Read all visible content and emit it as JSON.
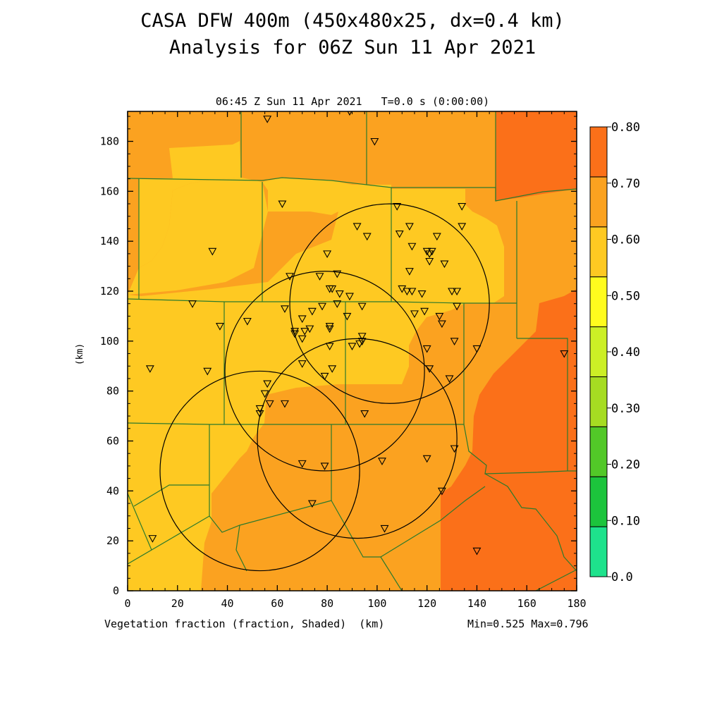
{
  "header": {
    "title_line1": "CASA DFW 400m (450x480x25, dx=0.4 km)",
    "title_line2": "Analysis for 06Z Sun 11 Apr 2021",
    "subtitle": "06:45 Z Sun 11 Apr 2021   T=0.0 s (0:00:00)"
  },
  "footer": {
    "field_label": "Vegetation fraction (fraction, Shaded)  (km)",
    "min_max": "Min=0.525 Max=0.796"
  },
  "axes": {
    "ylabel": "(km)",
    "x_ticks": [
      0,
      20,
      40,
      60,
      80,
      100,
      120,
      140,
      160,
      180
    ],
    "y_ticks": [
      0,
      20,
      40,
      60,
      80,
      100,
      120,
      140,
      160,
      180
    ],
    "xlim": [
      0,
      180
    ],
    "ylim": [
      0,
      192
    ]
  },
  "colorbar": {
    "levels": [
      "0.0",
      "0.10",
      "0.20",
      "0.30",
      "0.40",
      "0.50",
      "0.60",
      "0.70",
      "0.80"
    ],
    "colors": [
      "#1ee28c",
      "#1cc43c",
      "#52c828",
      "#a6dc22",
      "#ccef26",
      "#fffc1e",
      "#fec922",
      "#fba220",
      "#fb7019"
    ]
  },
  "chart_data": {
    "type": "heatmap",
    "field": "Vegetation fraction",
    "min": 0.525,
    "max": 0.796,
    "radar_rings": [
      {
        "cx": 53,
        "cy": 48,
        "r": 40
      },
      {
        "cx": 79,
        "cy": 88,
        "r": 40
      },
      {
        "cx": 92,
        "cy": 61,
        "r": 40
      },
      {
        "cx": 105,
        "cy": 115,
        "r": 40
      }
    ],
    "stations": [
      [
        56,
        189
      ],
      [
        89,
        192
      ],
      [
        99,
        180
      ],
      [
        62,
        155
      ],
      [
        34,
        136
      ],
      [
        108,
        154
      ],
      [
        134,
        154
      ],
      [
        113,
        146
      ],
      [
        109,
        143
      ],
      [
        124,
        142
      ],
      [
        134,
        146
      ],
      [
        92,
        146
      ],
      [
        96,
        142
      ],
      [
        80,
        135
      ],
      [
        114,
        138
      ],
      [
        120,
        136
      ],
      [
        122,
        136
      ],
      [
        121,
        135
      ],
      [
        121,
        132
      ],
      [
        127,
        131
      ],
      [
        65,
        126
      ],
      [
        77,
        126
      ],
      [
        84,
        127
      ],
      [
        113,
        128
      ],
      [
        81,
        121
      ],
      [
        82,
        121
      ],
      [
        110,
        121
      ],
      [
        112,
        120
      ],
      [
        114,
        120
      ],
      [
        118,
        119
      ],
      [
        130,
        120
      ],
      [
        132,
        120
      ],
      [
        85,
        119
      ],
      [
        89,
        118
      ],
      [
        78,
        114
      ],
      [
        84,
        115
      ],
      [
        94,
        114
      ],
      [
        132,
        114
      ],
      [
        63,
        113
      ],
      [
        74,
        112
      ],
      [
        88,
        110
      ],
      [
        115,
        111
      ],
      [
        119,
        112
      ],
      [
        125,
        110
      ],
      [
        126,
        107
      ],
      [
        70,
        109
      ],
      [
        48,
        108
      ],
      [
        81,
        106
      ],
      [
        81,
        105
      ],
      [
        37,
        106
      ],
      [
        26,
        115
      ],
      [
        67,
        104
      ],
      [
        67,
        103
      ],
      [
        71,
        104
      ],
      [
        73,
        105
      ],
      [
        70,
        101
      ],
      [
        94,
        102
      ],
      [
        93,
        99
      ],
      [
        94,
        100
      ],
      [
        131,
        100
      ],
      [
        140,
        97
      ],
      [
        175,
        95
      ],
      [
        81,
        98
      ],
      [
        90,
        98
      ],
      [
        120,
        97
      ],
      [
        70,
        91
      ],
      [
        79,
        86
      ],
      [
        82,
        89
      ],
      [
        121,
        89
      ],
      [
        129,
        85
      ],
      [
        9,
        89
      ],
      [
        32,
        88
      ],
      [
        55,
        79
      ],
      [
        56,
        83
      ],
      [
        57,
        75
      ],
      [
        53,
        73
      ],
      [
        53,
        71
      ],
      [
        63,
        75
      ],
      [
        95,
        71
      ],
      [
        131,
        57
      ],
      [
        120,
        53
      ],
      [
        102,
        52
      ],
      [
        70,
        51
      ],
      [
        79,
        50
      ],
      [
        126,
        40
      ],
      [
        74,
        35
      ],
      [
        103,
        25
      ],
      [
        10,
        21
      ],
      [
        140,
        16
      ]
    ]
  }
}
